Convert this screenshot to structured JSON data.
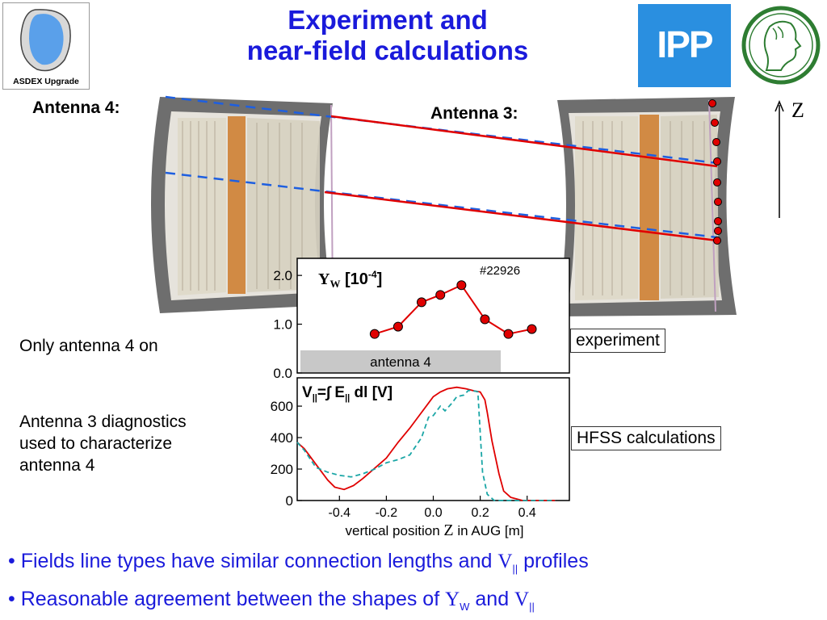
{
  "title": {
    "line1": "Experiment and",
    "line2": "near-field calculations"
  },
  "logos": {
    "asdex_caption": "ASDEX Upgrade",
    "ipp_text": "IPP",
    "colors": {
      "ipp_bg": "#2a8fe0",
      "mpg_green": "#2e7d32"
    }
  },
  "antenna_labels": {
    "antenna4": "Antenna 4:",
    "antenna3": "Antenna 3:"
  },
  "z_axis_label": "Z",
  "left_notes": {
    "only_antenna4": "Only antenna 4 on",
    "diag_line1": "Antenna 3 diagnostics",
    "diag_line2": "used to characterize",
    "diag_line3": "antenna 4"
  },
  "legend_boxes": {
    "experiment": "experiment",
    "hfss": "HFSS calculations"
  },
  "bullets": [
    {
      "pre": "Fields line types have similar connection lengths and ",
      "sym": "V",
      "sub": "||",
      "post": " profiles"
    },
    {
      "pre": "Reasonable agreement between the shapes of ",
      "sym": "Y",
      "sub": "W",
      "mid": " and ",
      "sym2": "V",
      "sub2": "||"
    }
  ],
  "colors": {
    "title": "#1a1adb",
    "red": "#e00000",
    "blue_dash": "#1e5fe0",
    "teal": "#1aa6a6",
    "gray_bar": "#c8c8c8"
  },
  "chart_data": [
    {
      "type": "line",
      "title": "Y_W [10^-4]",
      "annotation": "#22926",
      "band_label": "antenna 4",
      "x": [
        -0.25,
        -0.15,
        -0.05,
        0.03,
        0.12,
        0.22,
        0.32,
        0.42
      ],
      "series": [
        {
          "values": [
            0.8,
            0.95,
            1.45,
            1.6,
            1.8,
            1.1,
            0.8,
            0.9
          ]
        }
      ],
      "yticks": [
        "0.0",
        "1.0",
        "2.0"
      ],
      "ylim": [
        0,
        2.35
      ],
      "xlim": [
        -0.58,
        0.58
      ]
    },
    {
      "type": "line",
      "title": "V|| = ∫ E|| dl [V]",
      "xlabel_pre": "vertical position ",
      "xlabel_sym": "Z",
      "xlabel_post": " in AUG [m]",
      "xticks": [
        "-0.4",
        "-0.2",
        "0.0",
        "0.2",
        "0.4"
      ],
      "xtick_values": [
        -0.4,
        -0.2,
        0.0,
        0.2,
        0.4
      ],
      "yticks": [
        "0",
        "200",
        "400",
        "600"
      ],
      "ytick_values": [
        0,
        200,
        400,
        600
      ],
      "xlim": [
        -0.58,
        0.58
      ],
      "ylim": [
        0,
        780
      ],
      "series": [
        {
          "color": "red",
          "style": "solid",
          "x": [
            -0.58,
            -0.55,
            -0.5,
            -0.45,
            -0.42,
            -0.38,
            -0.34,
            -0.3,
            -0.25,
            -0.2,
            -0.15,
            -0.1,
            -0.06,
            -0.02,
            0.0,
            0.03,
            0.06,
            0.1,
            0.14,
            0.18,
            0.2,
            0.22,
            0.23,
            0.25,
            0.28,
            0.3,
            0.33,
            0.38,
            0.45,
            0.52
          ],
          "y": [
            370,
            330,
            230,
            130,
            85,
            70,
            95,
            140,
            205,
            270,
            370,
            460,
            540,
            620,
            660,
            690,
            710,
            720,
            710,
            695,
            690,
            640,
            560,
            380,
            170,
            60,
            20,
            0,
            0,
            0
          ]
        },
        {
          "color": "teal",
          "style": "dashed",
          "x": [
            -0.58,
            -0.55,
            -0.5,
            -0.45,
            -0.4,
            -0.35,
            -0.3,
            -0.25,
            -0.2,
            -0.15,
            -0.1,
            -0.05,
            -0.02,
            0.0,
            0.03,
            0.05,
            0.08,
            0.1,
            0.13,
            0.15,
            0.18,
            0.19,
            0.2,
            0.21,
            0.23,
            0.26,
            0.3,
            0.35,
            0.45,
            0.52
          ],
          "y": [
            370,
            320,
            210,
            180,
            160,
            150,
            170,
            200,
            240,
            260,
            290,
            400,
            530,
            540,
            600,
            570,
            620,
            660,
            670,
            700,
            695,
            690,
            430,
            180,
            40,
            0,
            0,
            0,
            0,
            0
          ]
        }
      ]
    }
  ]
}
